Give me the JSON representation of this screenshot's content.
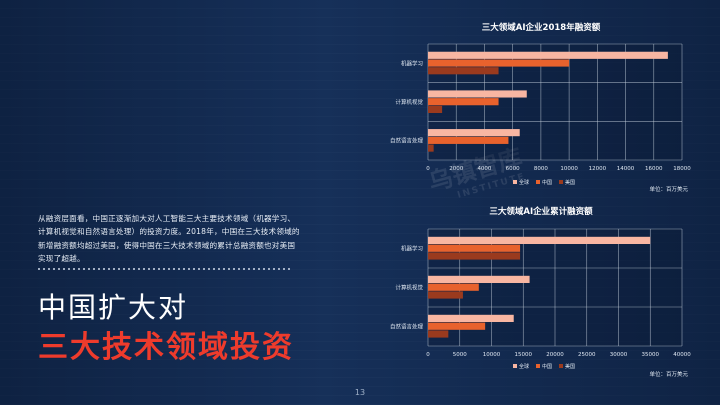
{
  "description": "从融资层面看，中国正逐渐加大对人工智能三大主要技术领域（机器学习、计算机视觉和自然语言处理）的投资力度。2018年，中国在三大技术领域的新增融资额均超过美国，使得中国在三大技术领域的累计总融资额也对美国实现了超越。",
  "heading_line1": "中国扩大对",
  "heading_line2": "三大技术领域投资",
  "page_number": "13",
  "watermark_text": "乌镇智库",
  "watermark_sub": "INSTITUTE",
  "colors": {
    "global": "#f8b6a2",
    "china": "#e8622d",
    "usa": "#9a3a1e",
    "heading_accent": "#ee3b2c",
    "grid": "#c7d2de"
  },
  "chart_data": [
    {
      "type": "bar",
      "orientation": "horizontal",
      "title": "三大领域AI企业2018年融资额",
      "categories": [
        "机器学习",
        "计算机视觉",
        "自然语言处理"
      ],
      "series": [
        {
          "name": "全球",
          "values": [
            17000,
            7000,
            6500
          ]
        },
        {
          "name": "中国",
          "values": [
            10000,
            5000,
            5700
          ]
        },
        {
          "name": "美国",
          "values": [
            5000,
            1000,
            400
          ]
        }
      ],
      "xlim": [
        0,
        18000
      ],
      "xticks": [
        "0",
        "2000",
        "4000",
        "6000",
        "8000",
        "10000",
        "12000",
        "14000",
        "16000",
        "18000"
      ],
      "unit": "单位：百万美元",
      "legend": "bottom",
      "grid": true
    },
    {
      "type": "bar",
      "orientation": "horizontal",
      "title": "三大领域AI企业累计融资额",
      "categories": [
        "机器学习",
        "计算机视觉",
        "自然语言处理"
      ],
      "series": [
        {
          "name": "全球",
          "values": [
            35000,
            16000,
            13500
          ]
        },
        {
          "name": "中国",
          "values": [
            14500,
            8000,
            9000
          ]
        },
        {
          "name": "美国",
          "values": [
            14500,
            5500,
            3200
          ]
        }
      ],
      "xlim": [
        0,
        40000
      ],
      "xticks": [
        "0",
        "5000",
        "10000",
        "15000",
        "20000",
        "25000",
        "30000",
        "35000",
        "40000"
      ],
      "unit": "单位：百万美元",
      "legend": "bottom",
      "grid": true
    }
  ]
}
